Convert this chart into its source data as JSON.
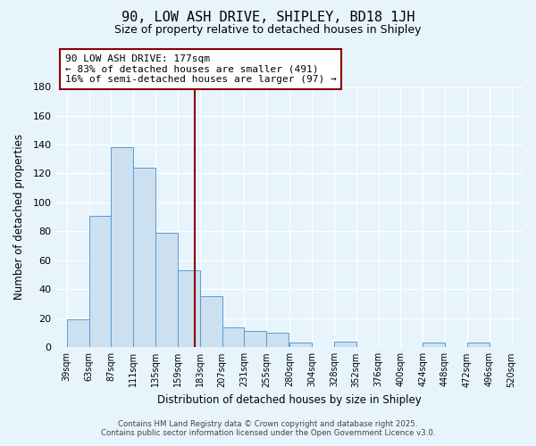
{
  "title": "90, LOW ASH DRIVE, SHIPLEY, BD18 1JH",
  "subtitle": "Size of property relative to detached houses in Shipley",
  "xlabel": "Distribution of detached houses by size in Shipley",
  "ylabel": "Number of detached properties",
  "bins": [
    39,
    63,
    87,
    111,
    135,
    159,
    183,
    207,
    231,
    255,
    280,
    304,
    328,
    352,
    376,
    400,
    424,
    448,
    472,
    496,
    520
  ],
  "counts": [
    19,
    91,
    138,
    124,
    79,
    53,
    35,
    14,
    11,
    10,
    3,
    0,
    4,
    0,
    0,
    0,
    3,
    0,
    3,
    0
  ],
  "bar_facecolor": "#cce0f0",
  "bar_edgecolor": "#5b9bd5",
  "reference_line_x": 177,
  "reference_line_color": "#8b0000",
  "annotation_line1": "90 LOW ASH DRIVE: 177sqm",
  "annotation_line2": "← 83% of detached houses are smaller (491)",
  "annotation_line3": "16% of semi-detached houses are larger (97) →",
  "annotation_box_facecolor": "white",
  "annotation_box_edgecolor": "#8b0000",
  "ylim": [
    0,
    180
  ],
  "yticks": [
    0,
    20,
    40,
    60,
    80,
    100,
    120,
    140,
    160,
    180
  ],
  "tick_labels": [
    "39sqm",
    "63sqm",
    "87sqm",
    "111sqm",
    "135sqm",
    "159sqm",
    "183sqm",
    "207sqm",
    "231sqm",
    "255sqm",
    "280sqm",
    "304sqm",
    "328sqm",
    "352sqm",
    "376sqm",
    "400sqm",
    "424sqm",
    "448sqm",
    "472sqm",
    "496sqm",
    "520sqm"
  ],
  "bg_color": "#e8f4fc",
  "grid_color": "#ffffff",
  "footer_line1": "Contains HM Land Registry data © Crown copyright and database right 2025.",
  "footer_line2": "Contains public sector information licensed under the Open Government Licence v3.0."
}
